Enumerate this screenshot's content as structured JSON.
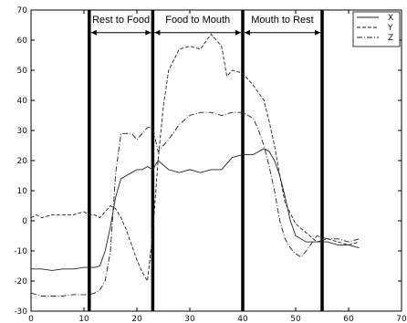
{
  "chart_data": {
    "type": "line",
    "title": "",
    "xlabel": "",
    "ylabel": "",
    "xlim": [
      0,
      70
    ],
    "ylim": [
      -30,
      70
    ],
    "x_ticks": [
      "0",
      "10",
      "20",
      "30",
      "40",
      "50",
      "60",
      "70"
    ],
    "y_ticks": [
      "-30",
      "-20",
      "-10",
      "0",
      "10",
      "20",
      "30",
      "40",
      "50",
      "60",
      "70"
    ],
    "grid": false,
    "legend_position": "top-right",
    "phase_lines": [
      11,
      23,
      40,
      55
    ],
    "phases": [
      {
        "label": "Rest to Food",
        "start": 11,
        "end": 23
      },
      {
        "label": "Food to Mouth",
        "start": 23,
        "end": 40
      },
      {
        "label": "Mouth to Rest",
        "start": 40,
        "end": 55
      }
    ],
    "series": [
      {
        "name": "X",
        "style": "solid",
        "x": [
          0,
          2,
          4,
          6,
          8,
          10,
          11,
          12,
          13,
          14,
          15,
          16,
          17,
          18,
          19,
          20,
          21,
          22,
          23,
          24,
          26,
          28,
          30,
          32,
          34,
          36,
          38,
          40,
          42,
          43,
          44,
          45,
          46,
          47,
          48,
          49,
          50,
          52,
          54,
          56,
          58,
          60,
          62
        ],
        "y": [
          -16,
          -16,
          -16.5,
          -16,
          -16,
          -15.5,
          -15.5,
          -15.5,
          -15,
          -10,
          -2,
          8,
          14,
          15,
          16,
          17,
          17,
          18,
          17,
          20,
          17,
          16,
          17,
          16,
          17,
          17,
          21,
          22,
          22,
          23,
          24,
          23,
          20,
          15,
          8,
          0,
          -5,
          -7,
          -7,
          -7,
          -8,
          -8,
          -9
        ]
      },
      {
        "name": "Y",
        "style": "dashed",
        "x": [
          0,
          1,
          2,
          4,
          6,
          8,
          10,
          11,
          12,
          13,
          14,
          15,
          16,
          17,
          18,
          19,
          20,
          21,
          22,
          23,
          24,
          25,
          26,
          28,
          30,
          32,
          34,
          35,
          36,
          37,
          38,
          40,
          42,
          44,
          45,
          46,
          47,
          48,
          50,
          52,
          54,
          56,
          58,
          60,
          62
        ],
        "y": [
          1,
          2,
          1,
          2,
          2,
          2,
          3,
          2,
          2,
          1,
          3,
          5,
          4,
          1,
          -3,
          -8,
          -13,
          -17,
          -20,
          -4,
          20,
          38,
          50,
          57,
          58,
          57,
          62,
          60,
          58,
          48,
          50,
          49,
          45,
          40,
          33,
          25,
          15,
          6,
          -1,
          -4,
          -7,
          -6,
          -7,
          -8,
          -7
        ]
      },
      {
        "name": "Z",
        "style": "dashdot",
        "x": [
          0,
          2,
          4,
          6,
          8,
          10,
          11,
          12,
          13,
          14,
          15,
          16,
          17,
          18,
          19,
          20,
          21,
          22,
          23,
          24,
          26,
          28,
          30,
          32,
          34,
          36,
          38,
          40,
          42,
          43,
          44,
          45,
          46,
          47,
          48,
          49,
          50,
          51,
          52,
          54,
          56,
          58,
          60,
          62
        ],
        "y": [
          -24,
          -25,
          -25,
          -25,
          -24.5,
          -24.5,
          -24.5,
          -24,
          -23,
          -20,
          -10,
          16,
          29,
          29,
          29,
          27,
          29,
          31,
          31,
          23,
          27,
          32,
          35,
          36,
          36,
          35,
          36,
          36,
          34,
          30,
          25,
          18,
          10,
          0,
          -6,
          -9,
          -11,
          -12,
          -10,
          -5,
          -6,
          -6,
          -7,
          -6
        ]
      }
    ]
  }
}
